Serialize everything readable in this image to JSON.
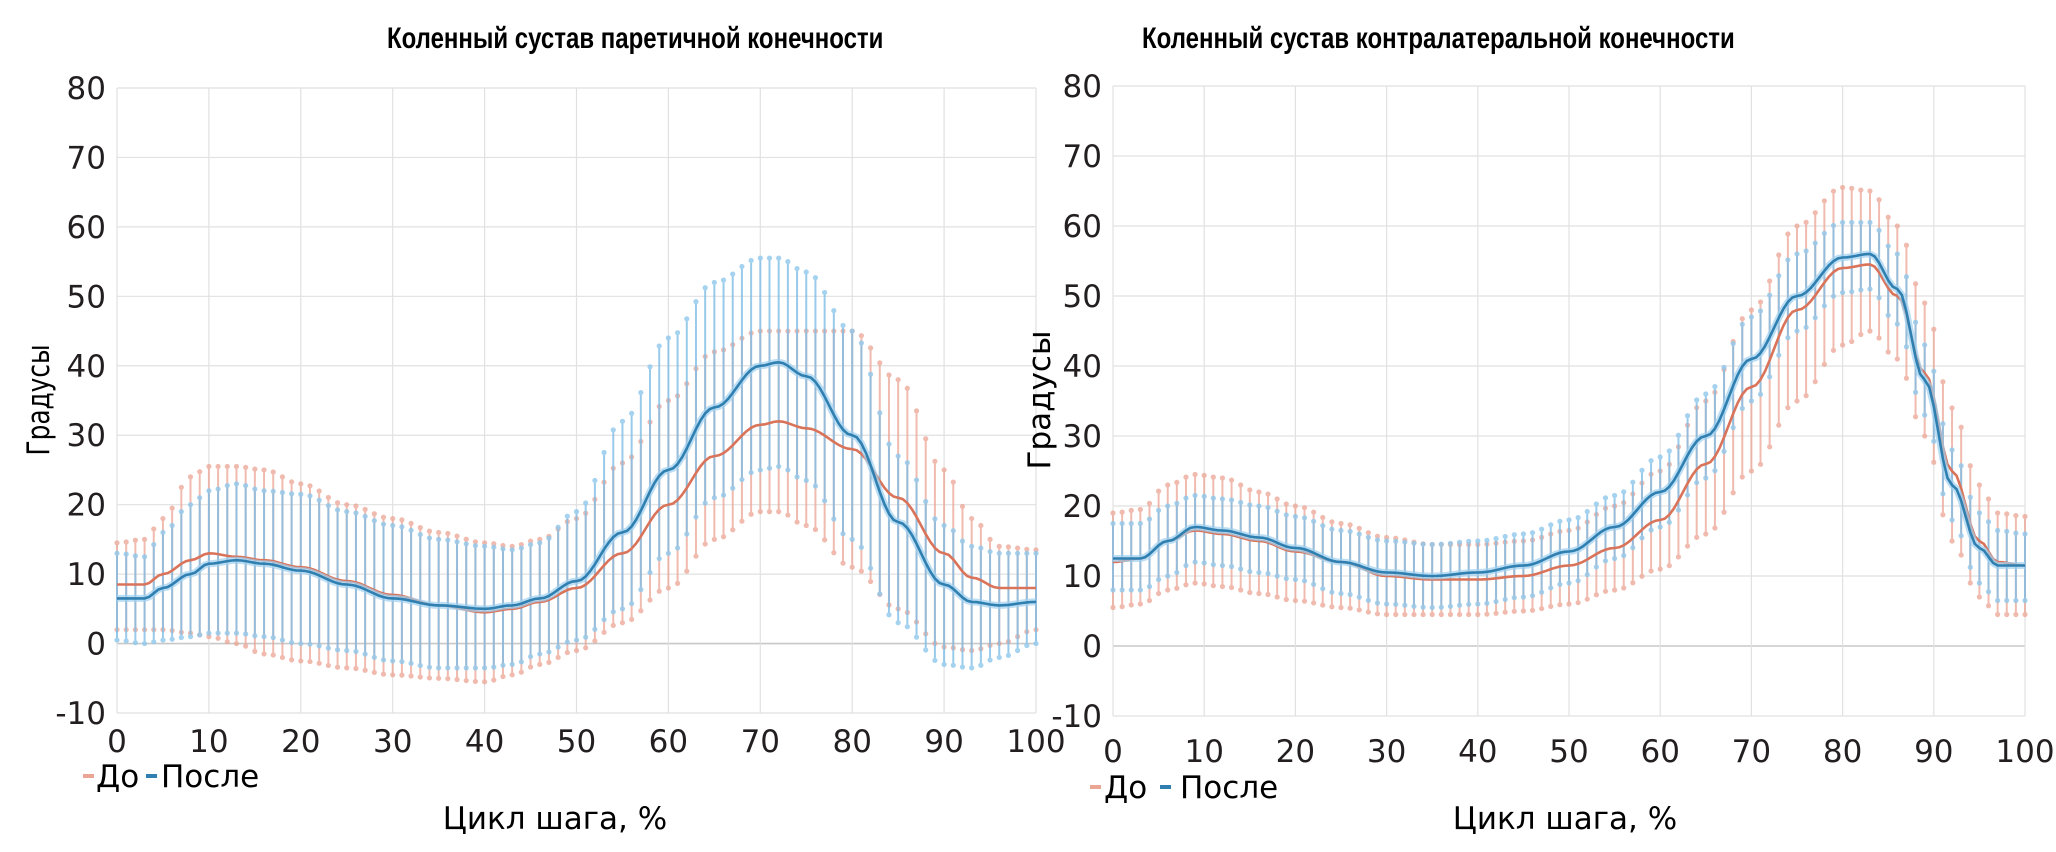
{
  "colors": {
    "before_line": "#d9735a",
    "before_band": "#eba594",
    "after_line": "#2f7fb0",
    "after_band": "#7fbde6",
    "grid": "#e1e1e1",
    "zero_line": "#c8c8c8",
    "text": "#231f20"
  },
  "chart_data": [
    {
      "type": "line",
      "title": "Коленный сустав паретичной конечности",
      "xlabel": "Цикл шага, %",
      "ylabel": "Градусы",
      "xlim": [
        0,
        100
      ],
      "ylim": [
        -10,
        80
      ],
      "x_ticks": [
        "0",
        "10",
        "20",
        "30",
        "40",
        "50",
        "60",
        "70",
        "80",
        "90",
        "100"
      ],
      "y_ticks": [
        "80",
        "70",
        "60",
        "50",
        "40",
        "30",
        "20",
        "10",
        "0",
        "-10"
      ],
      "grid": true,
      "legend": {
        "placement": "bottom-left",
        "entries": [
          "До",
          "После"
        ]
      },
      "x": [
        0,
        3,
        5,
        8,
        10,
        13,
        16,
        20,
        25,
        30,
        35,
        40,
        43,
        46,
        50,
        55,
        60,
        65,
        70,
        72,
        75,
        80,
        85,
        90,
        93,
        96,
        100
      ],
      "series": [
        {
          "name": "До",
          "mean": [
            8.5,
            8.5,
            10,
            12,
            13,
            12.5,
            12,
            11,
            9,
            7,
            5.5,
            4.5,
            5,
            6,
            8,
            13,
            20,
            27,
            31.5,
            32,
            31,
            28,
            21,
            13,
            9.5,
            8,
            8
          ],
          "upper": [
            14.5,
            15,
            18,
            24,
            25.5,
            25.5,
            25,
            23,
            20,
            18,
            16,
            14.5,
            14,
            15,
            18,
            26,
            35,
            42,
            45,
            45,
            45,
            45,
            38,
            25,
            18,
            14,
            13.5
          ],
          "lower": [
            2,
            2,
            2,
            1.5,
            1,
            0,
            -1.5,
            -2.5,
            -3.5,
            -4.5,
            -5,
            -5.5,
            -4.5,
            -3,
            -1,
            3,
            8,
            15,
            19,
            19,
            17,
            11,
            5,
            -0.5,
            -1,
            0,
            2
          ]
        },
        {
          "name": "После",
          "mean": [
            6.5,
            6.5,
            8,
            10,
            11.5,
            12,
            11.5,
            10.5,
            8.5,
            6.5,
            5.5,
            5,
            5.5,
            6.5,
            9,
            16,
            25,
            34,
            40,
            40.5,
            38.5,
            30,
            17.5,
            8.5,
            6,
            5.5,
            6
          ],
          "upper": [
            13,
            12.5,
            16,
            20,
            22,
            23,
            22,
            21.5,
            19,
            17,
            15,
            14,
            13.5,
            14.5,
            19,
            32,
            44,
            52,
            55.5,
            55.5,
            53.5,
            45,
            27,
            17,
            14,
            13,
            13
          ],
          "lower": [
            0.5,
            0,
            0.5,
            1,
            1.5,
            1.5,
            1,
            0,
            -1,
            -2.5,
            -3.5,
            -3.5,
            -3,
            -1.5,
            0.5,
            5,
            13,
            21,
            25,
            25.5,
            23.5,
            15,
            3,
            -3,
            -3.5,
            -2,
            0
          ]
        }
      ]
    },
    {
      "type": "line",
      "title": "Коленный сустав контралатеральной конечности",
      "xlabel": "Цикл шага, %",
      "ylabel": "Градусы",
      "xlim": [
        0,
        100
      ],
      "ylim": [
        -10,
        80
      ],
      "x_ticks": [
        "0",
        "10",
        "20",
        "30",
        "40",
        "50",
        "60",
        "70",
        "80",
        "90",
        "100"
      ],
      "y_ticks": [
        "80",
        "70",
        "60",
        "50",
        "40",
        "30",
        "20",
        "10",
        "0",
        "-10"
      ],
      "grid": true,
      "legend": {
        "placement": "bottom-left",
        "entries": [
          "До",
          "После"
        ]
      },
      "x": [
        0,
        3,
        6,
        9,
        12,
        16,
        20,
        25,
        30,
        35,
        40,
        45,
        50,
        55,
        60,
        65,
        70,
        75,
        80,
        83,
        86,
        89,
        92,
        95,
        97,
        100
      ],
      "series": [
        {
          "name": "До",
          "mean": [
            12,
            12.5,
            15,
            16.5,
            16,
            15,
            13.5,
            12,
            10,
            9.5,
            9.5,
            10,
            11.5,
            14,
            18,
            26,
            37,
            48,
            54,
            54.5,
            50,
            39,
            25,
            15,
            12,
            11.5
          ],
          "upper": [
            19,
            19.5,
            23,
            24.5,
            24,
            22,
            20,
            17.5,
            15.5,
            14.5,
            14.5,
            15,
            16.5,
            20,
            25,
            35,
            48,
            60,
            65.5,
            65,
            60,
            49,
            34,
            23,
            19,
            18.5
          ],
          "lower": [
            5.5,
            6,
            8,
            9,
            8.5,
            7.5,
            6.5,
            5.5,
            4.5,
            4.5,
            4.5,
            5,
            6,
            8,
            11,
            16,
            25,
            35,
            43,
            45,
            41,
            30,
            15,
            7,
            4.5,
            4.5
          ]
        },
        {
          "name": "После",
          "mean": [
            12.5,
            12.5,
            15,
            17,
            16.5,
            15.5,
            14,
            12,
            10.5,
            10,
            10.5,
            11.5,
            13.5,
            17,
            22,
            30,
            41,
            50,
            55.5,
            56,
            51,
            38,
            23,
            14,
            11.5,
            11.5
          ],
          "upper": [
            17.5,
            17.5,
            20,
            21.5,
            21,
            20,
            18.5,
            16.5,
            15,
            14.5,
            15,
            16,
            18,
            21.5,
            27,
            36,
            47,
            56,
            60.5,
            60.5,
            56,
            43,
            28,
            19,
            16.5,
            16
          ],
          "lower": [
            8,
            8,
            10,
            12,
            11.5,
            10.5,
            9.5,
            7.5,
            6,
            5.5,
            6,
            7,
            9,
            12.5,
            17,
            24,
            35,
            45,
            50.5,
            51,
            46,
            33,
            18,
            9,
            6.5,
            6.5
          ]
        }
      ]
    }
  ]
}
